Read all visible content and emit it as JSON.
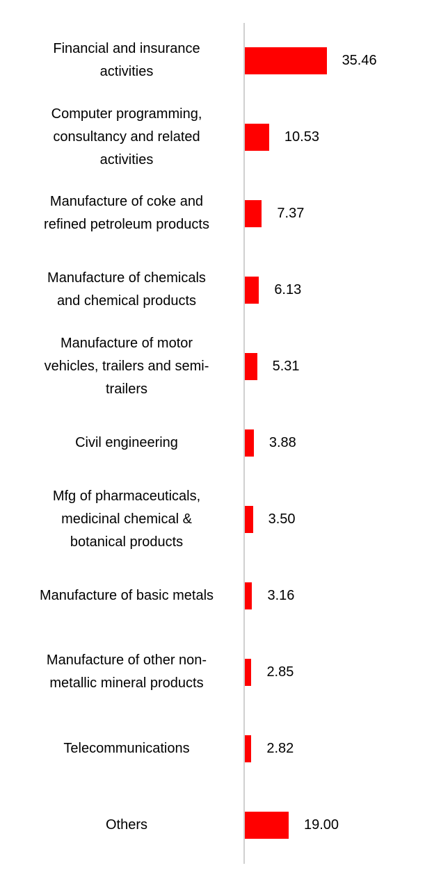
{
  "chart_data": {
    "type": "bar",
    "orientation": "horizontal",
    "categories": [
      "Financial and insurance\nactivities",
      "Computer programming,\nconsultancy and related\nactivities",
      "Manufacture of coke and\nrefined petroleum products",
      "Manufacture of chemicals\nand chemical products",
      "Manufacture of motor\nvehicles, trailers and semi-\ntrailers",
      "Civil engineering",
      "Mfg of pharmaceuticals,\nmedicinal chemical &\nbotanical products",
      "Manufacture of basic metals",
      "Manufacture of other non-\nmetallic mineral products",
      "Telecommunications",
      "Others"
    ],
    "values": [
      35.46,
      10.53,
      7.37,
      6.13,
      5.31,
      3.88,
      3.5,
      3.16,
      2.85,
      2.82,
      19.0
    ],
    "value_labels": [
      "35.46",
      "10.53",
      "7.37",
      "6.13",
      "5.31",
      "3.88",
      "3.50",
      "3.16",
      "2.85",
      "2.82",
      "19.00"
    ],
    "title": "",
    "xlabel": "",
    "ylabel": "",
    "xlim": [
      0,
      38
    ],
    "grid": false,
    "legend": "none",
    "bar_color": "#ff0000",
    "axis_color": "#d0d0d0"
  }
}
